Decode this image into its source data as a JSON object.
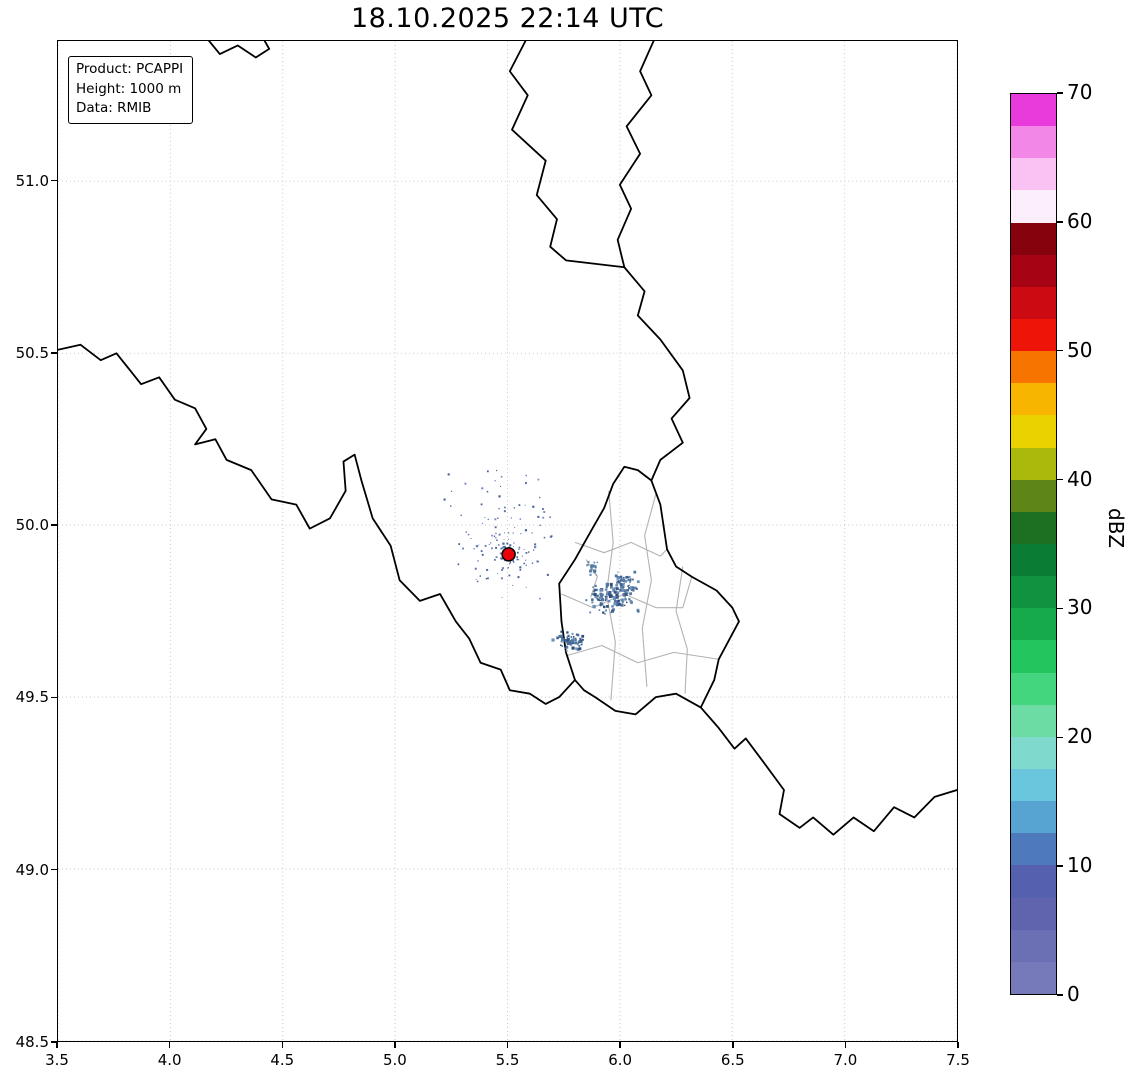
{
  "title": "18.10.2025 22:14 UTC",
  "annotation": {
    "lines": [
      "Product: PCAPPI",
      "Height: 1000 m",
      "Data: RMIB"
    ]
  },
  "axes": {
    "xlim": [
      3.5,
      7.5
    ],
    "ylim": [
      48.5,
      51.408
    ],
    "x_ticks": [
      3.5,
      4.0,
      4.5,
      5.0,
      5.5,
      6.0,
      6.5,
      7.0,
      7.5
    ],
    "x_tick_labels": [
      "3.5",
      "4.0",
      "4.5",
      "5.0",
      "5.5",
      "6.0",
      "6.5",
      "7.0",
      "7.5"
    ],
    "y_ticks": [
      48.5,
      49.0,
      49.5,
      50.0,
      50.5,
      51.0
    ],
    "y_tick_labels": [
      "48.5",
      "49.0",
      "49.5",
      "50.0",
      "50.5",
      "51.0"
    ],
    "grid_style": "dotted"
  },
  "colorbar": {
    "label": "dBZ",
    "min": 0,
    "max": 70,
    "tick_values": [
      0,
      10,
      20,
      30,
      40,
      50,
      60,
      70
    ],
    "band_step_dbz": 2.5,
    "colors_bottom_to_top": [
      "#767abb",
      "#6b6fb4",
      "#6063ad",
      "#5560ae",
      "#4e7abc",
      "#57a3d2",
      "#6ac6dd",
      "#80d9cd",
      "#6cdba4",
      "#44d67e",
      "#23c55f",
      "#17aa4b",
      "#0f9340",
      "#0b7c33",
      "#1d6f21",
      "#5d8517",
      "#abb90d",
      "#e9d200",
      "#f7b500",
      "#f77400",
      "#ee1408",
      "#cc0a11",
      "#a60414",
      "#86020d",
      "#fdeefc",
      "#fac2f2",
      "#f287e8",
      "#e93adc"
    ]
  },
  "map": {
    "border_color": "#000000",
    "region_color": "#b3b3b3",
    "country_borders": [
      [
        [
          4.17,
          51.41
        ],
        [
          4.22,
          51.37
        ],
        [
          4.3,
          51.395
        ],
        [
          4.38,
          51.36
        ],
        [
          4.44,
          51.385
        ],
        [
          4.42,
          51.408
        ]
      ],
      [
        [
          5.58,
          51.408
        ],
        [
          5.51,
          51.32
        ],
        [
          5.59,
          51.25
        ],
        [
          5.52,
          51.15
        ],
        [
          5.67,
          51.06
        ],
        [
          5.63,
          50.96
        ],
        [
          5.72,
          50.89
        ],
        [
          5.69,
          50.81
        ],
        [
          5.76,
          50.77
        ],
        [
          6.02,
          50.75
        ]
      ],
      [
        [
          6.15,
          51.408
        ],
        [
          6.09,
          51.32
        ],
        [
          6.14,
          51.25
        ],
        [
          6.03,
          51.16
        ],
        [
          6.09,
          51.08
        ],
        [
          6.0,
          50.99
        ],
        [
          6.05,
          50.92
        ],
        [
          5.99,
          50.83
        ],
        [
          6.02,
          50.75
        ]
      ],
      [
        [
          6.02,
          50.75
        ],
        [
          6.11,
          50.68
        ],
        [
          6.08,
          50.61
        ],
        [
          6.18,
          50.54
        ],
        [
          6.28,
          50.45
        ],
        [
          6.31,
          50.37
        ],
        [
          6.23,
          50.31
        ],
        [
          6.28,
          50.24
        ],
        [
          6.18,
          50.19
        ],
        [
          6.14,
          50.13
        ]
      ],
      [
        [
          6.14,
          50.13
        ],
        [
          6.08,
          50.16
        ],
        [
          6.02,
          50.17
        ],
        [
          5.97,
          50.12
        ],
        [
          5.93,
          50.05
        ],
        [
          5.86,
          49.97
        ],
        [
          5.8,
          49.9
        ],
        [
          5.73,
          49.83
        ],
        [
          5.74,
          49.72
        ],
        [
          5.76,
          49.63
        ],
        [
          5.8,
          49.55
        ],
        [
          5.84,
          49.52
        ],
        [
          5.89,
          49.5
        ],
        [
          5.98,
          49.46
        ],
        [
          6.07,
          49.45
        ],
        [
          6.16,
          49.5
        ],
        [
          6.25,
          49.51
        ],
        [
          6.36,
          49.47
        ],
        [
          6.42,
          49.55
        ],
        [
          6.44,
          49.61
        ],
        [
          6.53,
          49.72
        ],
        [
          6.5,
          49.76
        ],
        [
          6.43,
          49.81
        ],
        [
          6.32,
          49.85
        ],
        [
          6.25,
          49.88
        ],
        [
          6.21,
          49.93
        ],
        [
          6.18,
          50.06
        ],
        [
          6.14,
          50.13
        ]
      ],
      [
        [
          3.5,
          50.51
        ],
        [
          3.6,
          50.525
        ],
        [
          3.69,
          50.48
        ],
        [
          3.76,
          50.5
        ],
        [
          3.87,
          50.41
        ],
        [
          3.95,
          50.43
        ],
        [
          4.02,
          50.365
        ],
        [
          4.11,
          50.34
        ],
        [
          4.16,
          50.28
        ],
        [
          4.11,
          50.235
        ],
        [
          4.2,
          50.25
        ],
        [
          4.25,
          50.19
        ],
        [
          4.36,
          50.16
        ],
        [
          4.45,
          50.075
        ],
        [
          4.56,
          50.06
        ],
        [
          4.62,
          49.99
        ],
        [
          4.71,
          50.02
        ],
        [
          4.78,
          50.1
        ],
        [
          4.77,
          50.185
        ],
        [
          4.82,
          50.205
        ],
        [
          4.85,
          50.13
        ],
        [
          4.9,
          50.02
        ],
        [
          4.98,
          49.94
        ],
        [
          5.02,
          49.84
        ],
        [
          5.11,
          49.78
        ],
        [
          5.2,
          49.8
        ],
        [
          5.27,
          49.72
        ],
        [
          5.33,
          49.67
        ],
        [
          5.38,
          49.6
        ],
        [
          5.47,
          49.58
        ],
        [
          5.51,
          49.52
        ],
        [
          5.6,
          49.51
        ],
        [
          5.67,
          49.48
        ],
        [
          5.73,
          49.5
        ],
        [
          5.8,
          49.55
        ]
      ],
      [
        [
          6.36,
          49.47
        ],
        [
          6.44,
          49.41
        ],
        [
          6.51,
          49.35
        ],
        [
          6.56,
          49.38
        ],
        [
          6.64,
          49.31
        ],
        [
          6.73,
          49.23
        ],
        [
          6.71,
          49.16
        ],
        [
          6.8,
          49.12
        ],
        [
          6.86,
          49.15
        ],
        [
          6.95,
          49.1
        ],
        [
          7.04,
          49.15
        ],
        [
          7.13,
          49.11
        ],
        [
          7.22,
          49.18
        ],
        [
          7.31,
          49.15
        ],
        [
          7.4,
          49.21
        ],
        [
          7.5,
          49.23
        ]
      ]
    ],
    "region_borders": [
      [
        [
          5.8,
          49.95
        ],
        [
          5.93,
          49.92
        ],
        [
          6.05,
          49.95
        ],
        [
          6.18,
          49.91
        ],
        [
          6.21,
          49.93
        ]
      ],
      [
        [
          5.74,
          49.8
        ],
        [
          5.88,
          49.76
        ],
        [
          6.02,
          49.8
        ],
        [
          6.16,
          49.76
        ],
        [
          6.28,
          49.76
        ],
        [
          6.32,
          49.85
        ]
      ],
      [
        [
          5.76,
          49.62
        ],
        [
          5.92,
          49.65
        ],
        [
          6.08,
          49.6
        ],
        [
          6.24,
          49.63
        ],
        [
          6.44,
          49.61
        ]
      ],
      [
        [
          5.95,
          50.1
        ],
        [
          5.97,
          49.95
        ],
        [
          5.94,
          49.8
        ],
        [
          5.98,
          49.66
        ],
        [
          5.96,
          49.49
        ]
      ],
      [
        [
          6.16,
          50.09
        ],
        [
          6.11,
          49.97
        ],
        [
          6.14,
          49.84
        ],
        [
          6.1,
          49.7
        ],
        [
          6.12,
          49.53
        ]
      ],
      [
        [
          6.28,
          49.88
        ],
        [
          6.25,
          49.75
        ],
        [
          6.3,
          49.64
        ],
        [
          6.29,
          49.51
        ]
      ],
      [
        [
          5.85,
          49.9
        ],
        [
          5.9,
          49.85
        ],
        [
          5.87,
          49.79
        ]
      ]
    ]
  },
  "radar": {
    "lon": 5.505,
    "lat": 49.915,
    "color": "#e8000b"
  },
  "echo_clusters": [
    {
      "lon": 5.48,
      "lat": 49.97,
      "sx": 0.22,
      "sy": 0.15,
      "n": 110,
      "size": 1.5,
      "colors": [
        "#5f74b6",
        "#50679f",
        "#7384c2",
        "#47628f"
      ]
    },
    {
      "lon": 5.53,
      "lat": 49.92,
      "sx": 0.1,
      "sy": 0.06,
      "n": 40,
      "size": 1.6,
      "colors": [
        "#5f74b6",
        "#50679f",
        "#7384c2"
      ]
    },
    {
      "lon": 5.97,
      "lat": 49.79,
      "sx": 0.09,
      "sy": 0.04,
      "n": 120,
      "size": 2.3,
      "colors": [
        "#3f6394",
        "#53779f",
        "#6d90b8",
        "#2f4f7a"
      ]
    },
    {
      "lon": 6.03,
      "lat": 49.83,
      "sx": 0.05,
      "sy": 0.03,
      "n": 50,
      "size": 2.2,
      "colors": [
        "#3f6394",
        "#53779f",
        "#6d90b8"
      ]
    },
    {
      "lon": 5.79,
      "lat": 49.665,
      "sx": 0.065,
      "sy": 0.03,
      "n": 60,
      "size": 2.3,
      "colors": [
        "#3f6394",
        "#53779f",
        "#6d90b8",
        "#2f4f7a"
      ]
    },
    {
      "lon": 5.875,
      "lat": 49.875,
      "sx": 0.035,
      "sy": 0.025,
      "n": 20,
      "size": 2.0,
      "colors": [
        "#53779f",
        "#6d90b8"
      ]
    }
  ],
  "chart_data": {
    "type": "heatmap",
    "title": "18.10.2025 22:14 UTC",
    "xlabel": "",
    "ylabel": "",
    "x_ticks": [
      3.5,
      4.0,
      4.5,
      5.0,
      5.5,
      6.0,
      6.5,
      7.0,
      7.5
    ],
    "y_ticks": [
      48.5,
      49.0,
      49.5,
      50.0,
      50.5,
      51.0
    ],
    "xlim": [
      3.5,
      7.5
    ],
    "ylim": [
      48.5,
      51.41
    ],
    "grid": "dotted",
    "colorbar": {
      "label": "dBZ",
      "range": [
        0,
        70
      ],
      "ticks": [
        0,
        10,
        20,
        30,
        40,
        50,
        60,
        70
      ]
    },
    "annotations": [
      "Product: PCAPPI",
      "Height: 1000 m",
      "Data: RMIB"
    ],
    "radar_site": {
      "lon": 5.505,
      "lat": 49.915,
      "marker": "red circle"
    },
    "observed_reflectivity_dbz": "sparse low echoes ~0-15 dBZ",
    "echo_regions": [
      {
        "center_lon": 5.5,
        "center_lat": 49.95,
        "type": "sparse speckle ring around radar"
      },
      {
        "center_lon": 5.97,
        "center_lat": 49.79,
        "type": "dense band"
      },
      {
        "center_lon": 5.79,
        "center_lat": 49.66,
        "type": "diagonal streak"
      }
    ],
    "map_content": "country borders (black) Belgium/Netherlands/Germany/France/Luxembourg, Luxembourg cantons (gray)"
  }
}
